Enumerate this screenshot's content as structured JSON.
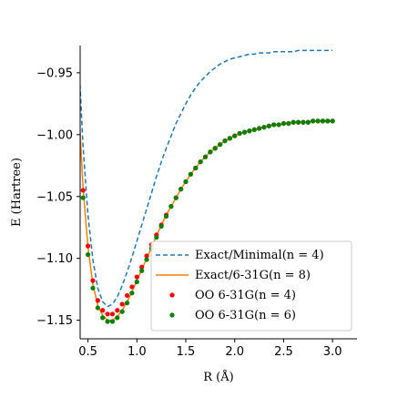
{
  "chart_data": {
    "type": "line",
    "xlabel": "R (Å)",
    "ylabel": "E (Hartree)",
    "xlim": [
      0.42,
      3.25
    ],
    "ylim": [
      -1.165,
      -0.928
    ],
    "xticks": [
      0.5,
      1.0,
      1.5,
      2.0,
      2.5,
      3.0
    ],
    "xtick_labels": [
      "0.5",
      "1.0",
      "1.5",
      "2.0",
      "2.5",
      "3.0"
    ],
    "yticks": [
      -0.95,
      -1.0,
      -1.05,
      -1.1,
      -1.15
    ],
    "ytick_labels": [
      "−0.95",
      "−1.00",
      "−1.05",
      "−1.10",
      "−1.15"
    ],
    "grid": false,
    "legend_position": "lower-right",
    "legend": [
      "Exact/Minimal(n = 4)",
      "Exact/6-31G(n = 8)",
      "OO 6-31G(n = 4)",
      "OO 6-31G(n = 6)"
    ],
    "series": [
      {
        "name": "Exact/Minimal(n = 4)",
        "style": "dashed-line",
        "color": "#1f77b4"
      },
      {
        "name": "Exact/6-31G(n = 8)",
        "style": "solid-line",
        "color": "#ff7f0e"
      },
      {
        "name": "OO 6-31G(n = 4)",
        "style": "markers",
        "color": "#ff0000"
      },
      {
        "name": "OO 6-31G(n = 6)",
        "style": "markers",
        "color": "#008000"
      }
    ],
    "sample_x": [
      0.4,
      0.45,
      0.5,
      0.55,
      0.6,
      0.65,
      0.7,
      0.75,
      0.8,
      0.85,
      0.9,
      0.95,
      1.0,
      1.05,
      1.1,
      1.15,
      1.2,
      1.25,
      1.3,
      1.35,
      1.4,
      1.45,
      1.5,
      1.55,
      1.6,
      1.65,
      1.7,
      1.75,
      1.8,
      1.85,
      1.9,
      1.95,
      2.0,
      2.05,
      2.1,
      2.15,
      2.2,
      2.25,
      2.3,
      2.35,
      2.4,
      2.45,
      2.5,
      2.55,
      2.6,
      2.65,
      2.7,
      2.75,
      2.8,
      2.85,
      2.9,
      2.95,
      3.0
    ],
    "minimal_y": [
      -0.93,
      -1.01,
      -1.065,
      -1.101,
      -1.124,
      -1.135,
      -1.139,
      -1.137,
      -1.131,
      -1.122,
      -1.111,
      -1.099,
      -1.086,
      -1.073,
      -1.06,
      -1.047,
      -1.034,
      -1.022,
      -1.011,
      -1.001,
      -0.991,
      -0.983,
      -0.975,
      -0.968,
      -0.962,
      -0.957,
      -0.953,
      -0.949,
      -0.946,
      -0.943,
      -0.941,
      -0.939,
      -0.938,
      -0.937,
      -0.936,
      -0.935,
      -0.935,
      -0.934,
      -0.934,
      -0.934,
      -0.933,
      -0.933,
      -0.933,
      -0.933,
      -0.933,
      -0.932,
      -0.932,
      -0.932,
      -0.932,
      -0.932,
      -0.932,
      -0.932,
      -0.932
    ],
    "g631_y": [
      -0.97,
      -1.043,
      -1.091,
      -1.121,
      -1.138,
      -1.146,
      -1.15,
      -1.15,
      -1.147,
      -1.142,
      -1.135,
      -1.127,
      -1.118,
      -1.109,
      -1.1,
      -1.091,
      -1.082,
      -1.073,
      -1.065,
      -1.058,
      -1.051,
      -1.044,
      -1.038,
      -1.032,
      -1.027,
      -1.022,
      -1.018,
      -1.014,
      -1.011,
      -1.008,
      -1.005,
      -1.003,
      -1.001,
      -0.999,
      -0.998,
      -0.997,
      -0.996,
      -0.995,
      -0.994,
      -0.993,
      -0.992,
      -0.992,
      -0.991,
      -0.991,
      -0.99,
      -0.99,
      -0.99,
      -0.99,
      -0.989,
      -0.989,
      -0.989,
      -0.989,
      -0.989
    ],
    "oo4_y": [
      -0.972,
      -1.045,
      -1.09,
      -1.118,
      -1.134,
      -1.142,
      -1.145,
      -1.145,
      -1.142,
      -1.137,
      -1.13,
      -1.123,
      -1.115,
      -1.107,
      -1.098,
      -1.089,
      -1.081,
      -1.073,
      -1.065,
      -1.058,
      -1.051,
      -1.044,
      -1.038,
      -1.032,
      -1.027,
      -1.022,
      -1.018,
      -1.014,
      -1.011,
      -1.008,
      -1.005,
      -1.003,
      -1.001,
      -0.999,
      -0.998,
      -0.997,
      -0.996,
      -0.995,
      -0.994,
      -0.993,
      -0.992,
      -0.992,
      -0.991,
      -0.991,
      -0.99,
      -0.99,
      -0.99,
      -0.99,
      -0.989,
      -0.989,
      -0.989,
      -0.989,
      -0.989
    ],
    "oo6_y": [
      -0.978,
      -1.051,
      -1.097,
      -1.124,
      -1.14,
      -1.148,
      -1.151,
      -1.151,
      -1.148,
      -1.143,
      -1.136,
      -1.128,
      -1.119,
      -1.11,
      -1.101,
      -1.092,
      -1.083,
      -1.074,
      -1.066,
      -1.058,
      -1.051,
      -1.044,
      -1.038,
      -1.032,
      -1.027,
      -1.022,
      -1.018,
      -1.014,
      -1.011,
      -1.008,
      -1.005,
      -1.003,
      -1.001,
      -0.999,
      -0.998,
      -0.997,
      -0.996,
      -0.995,
      -0.994,
      -0.993,
      -0.992,
      -0.992,
      -0.991,
      -0.991,
      -0.99,
      -0.99,
      -0.99,
      -0.99,
      -0.989,
      -0.989,
      -0.989,
      -0.989,
      -0.989
    ]
  }
}
